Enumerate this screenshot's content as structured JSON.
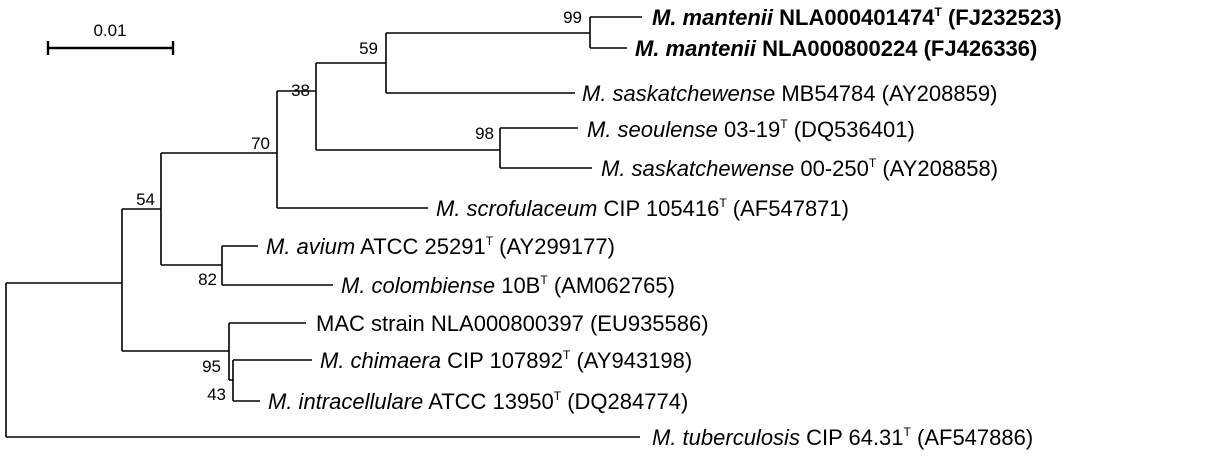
{
  "scale_bar": {
    "label": "0.01"
  },
  "taxa": [
    {
      "species": "M. mantenii",
      "strain": "NLA000401474",
      "type_strain": true,
      "accession": "(FJ232523)",
      "bold": true
    },
    {
      "species": "M. mantenii",
      "strain": "NLA000800224",
      "type_strain": false,
      "accession": "(FJ426336)",
      "bold": true
    },
    {
      "species": "M. saskatchewense",
      "strain": "MB54784",
      "type_strain": false,
      "accession": "(AY208859)",
      "bold": false
    },
    {
      "species": "M. seoulense",
      "strain": "03-19",
      "type_strain": true,
      "accession": "(DQ536401)",
      "bold": false
    },
    {
      "species": "M. saskatchewense",
      "strain": "00-250",
      "type_strain": true,
      "accession": "(AY208858)",
      "bold": false
    },
    {
      "species": "M. scrofulaceum",
      "strain": "CIP 105416",
      "type_strain": true,
      "accession": "(AF547871)",
      "bold": false
    },
    {
      "species": "M. avium",
      "strain": "ATCC 25291",
      "type_strain": true,
      "accession": "(AY299177)",
      "bold": false
    },
    {
      "species": "M. colombiense",
      "strain": "10B",
      "type_strain": true,
      "accession": "(AM062765)",
      "bold": false
    },
    {
      "species": "",
      "strain": "MAC strain NLA000800397",
      "type_strain": false,
      "accession": "(EU935586)",
      "bold": false
    },
    {
      "species": "M. chimaera",
      "strain": "CIP 107892",
      "type_strain": true,
      "accession": "(AY943198)",
      "bold": false
    },
    {
      "species": "M. intracellulare",
      "strain": "ATCC 13950",
      "type_strain": true,
      "accession": "(DQ284774)",
      "bold": false
    },
    {
      "species": "M. tuberculosis",
      "strain": "CIP 64.31",
      "type_strain": true,
      "accession": "(AF547886)",
      "bold": false
    }
  ],
  "type_strain_mark": "T",
  "bootstrap": [
    "99",
    "59",
    "38",
    "98",
    "70",
    "54",
    "82",
    "95",
    "43"
  ]
}
